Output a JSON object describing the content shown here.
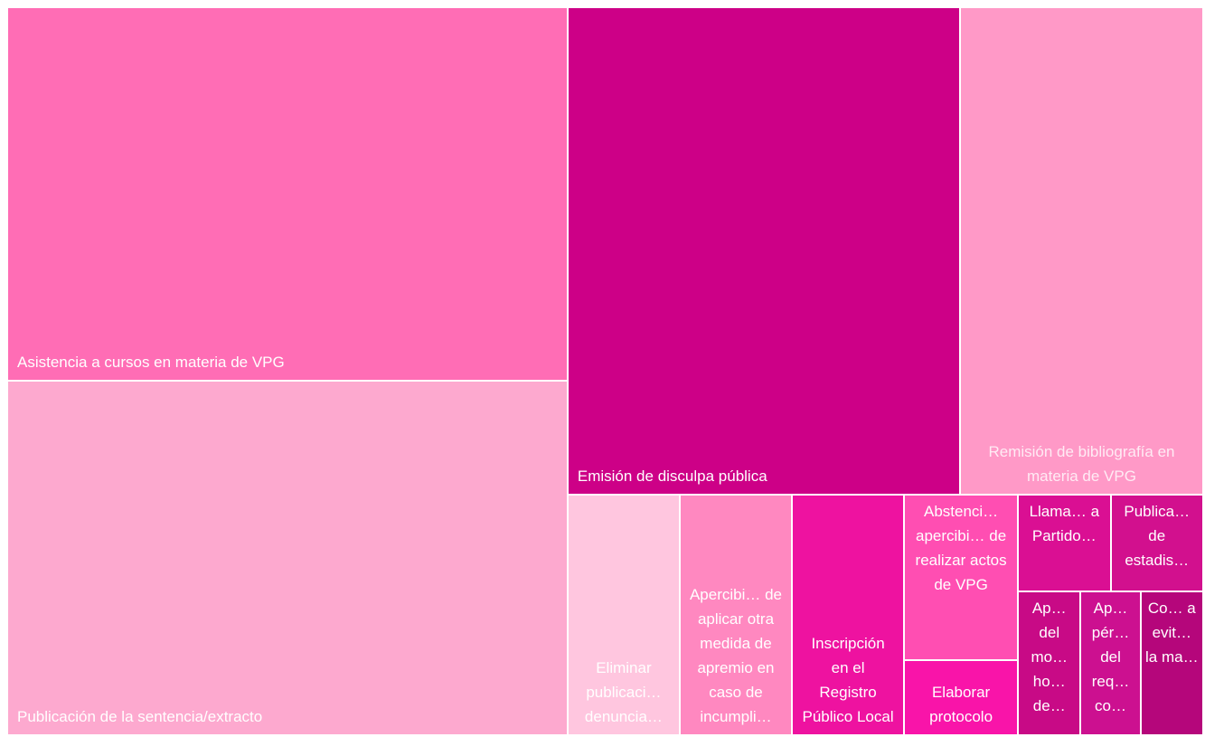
{
  "chart_data": {
    "type": "treemap",
    "categories": [
      "Asistencia a cursos en materia de VPG",
      "Publicación de la sentencia/extracto",
      "Emisión de disculpa pública",
      "Remisión de bibliografía en materia de VPG",
      "Eliminar publicaci… denuncia…",
      "Apercibi… de aplicar otra medida de apremio en caso de incumpli…",
      "Inscripción en el Registro Público Local",
      "Abstenci… apercibi… de realizar actos de VPG",
      "Elaborar protocolo",
      "Llama… a Partido…",
      "Publica… de estadis…",
      "Ap… del mo… ho… de…",
      "Ap… pér… del req… co…",
      "Co… a evit… la ma…"
    ],
    "values": [
      256,
      243,
      234,
      145,
      33,
      33,
      33,
      23,
      10.5,
      11,
      11,
      11,
      10.5,
      11
    ],
    "colors": [
      "#ff6db5",
      "#fda9cf",
      "#cd0087",
      "#ff99c7",
      "#ffc6df",
      "#ff88c0",
      "#ee12a0",
      "#ff4eb2",
      "#f914a9",
      "#da0f93",
      "#d2108e",
      "#c80a86",
      "#cc1090",
      "#b5067b"
    ]
  }
}
